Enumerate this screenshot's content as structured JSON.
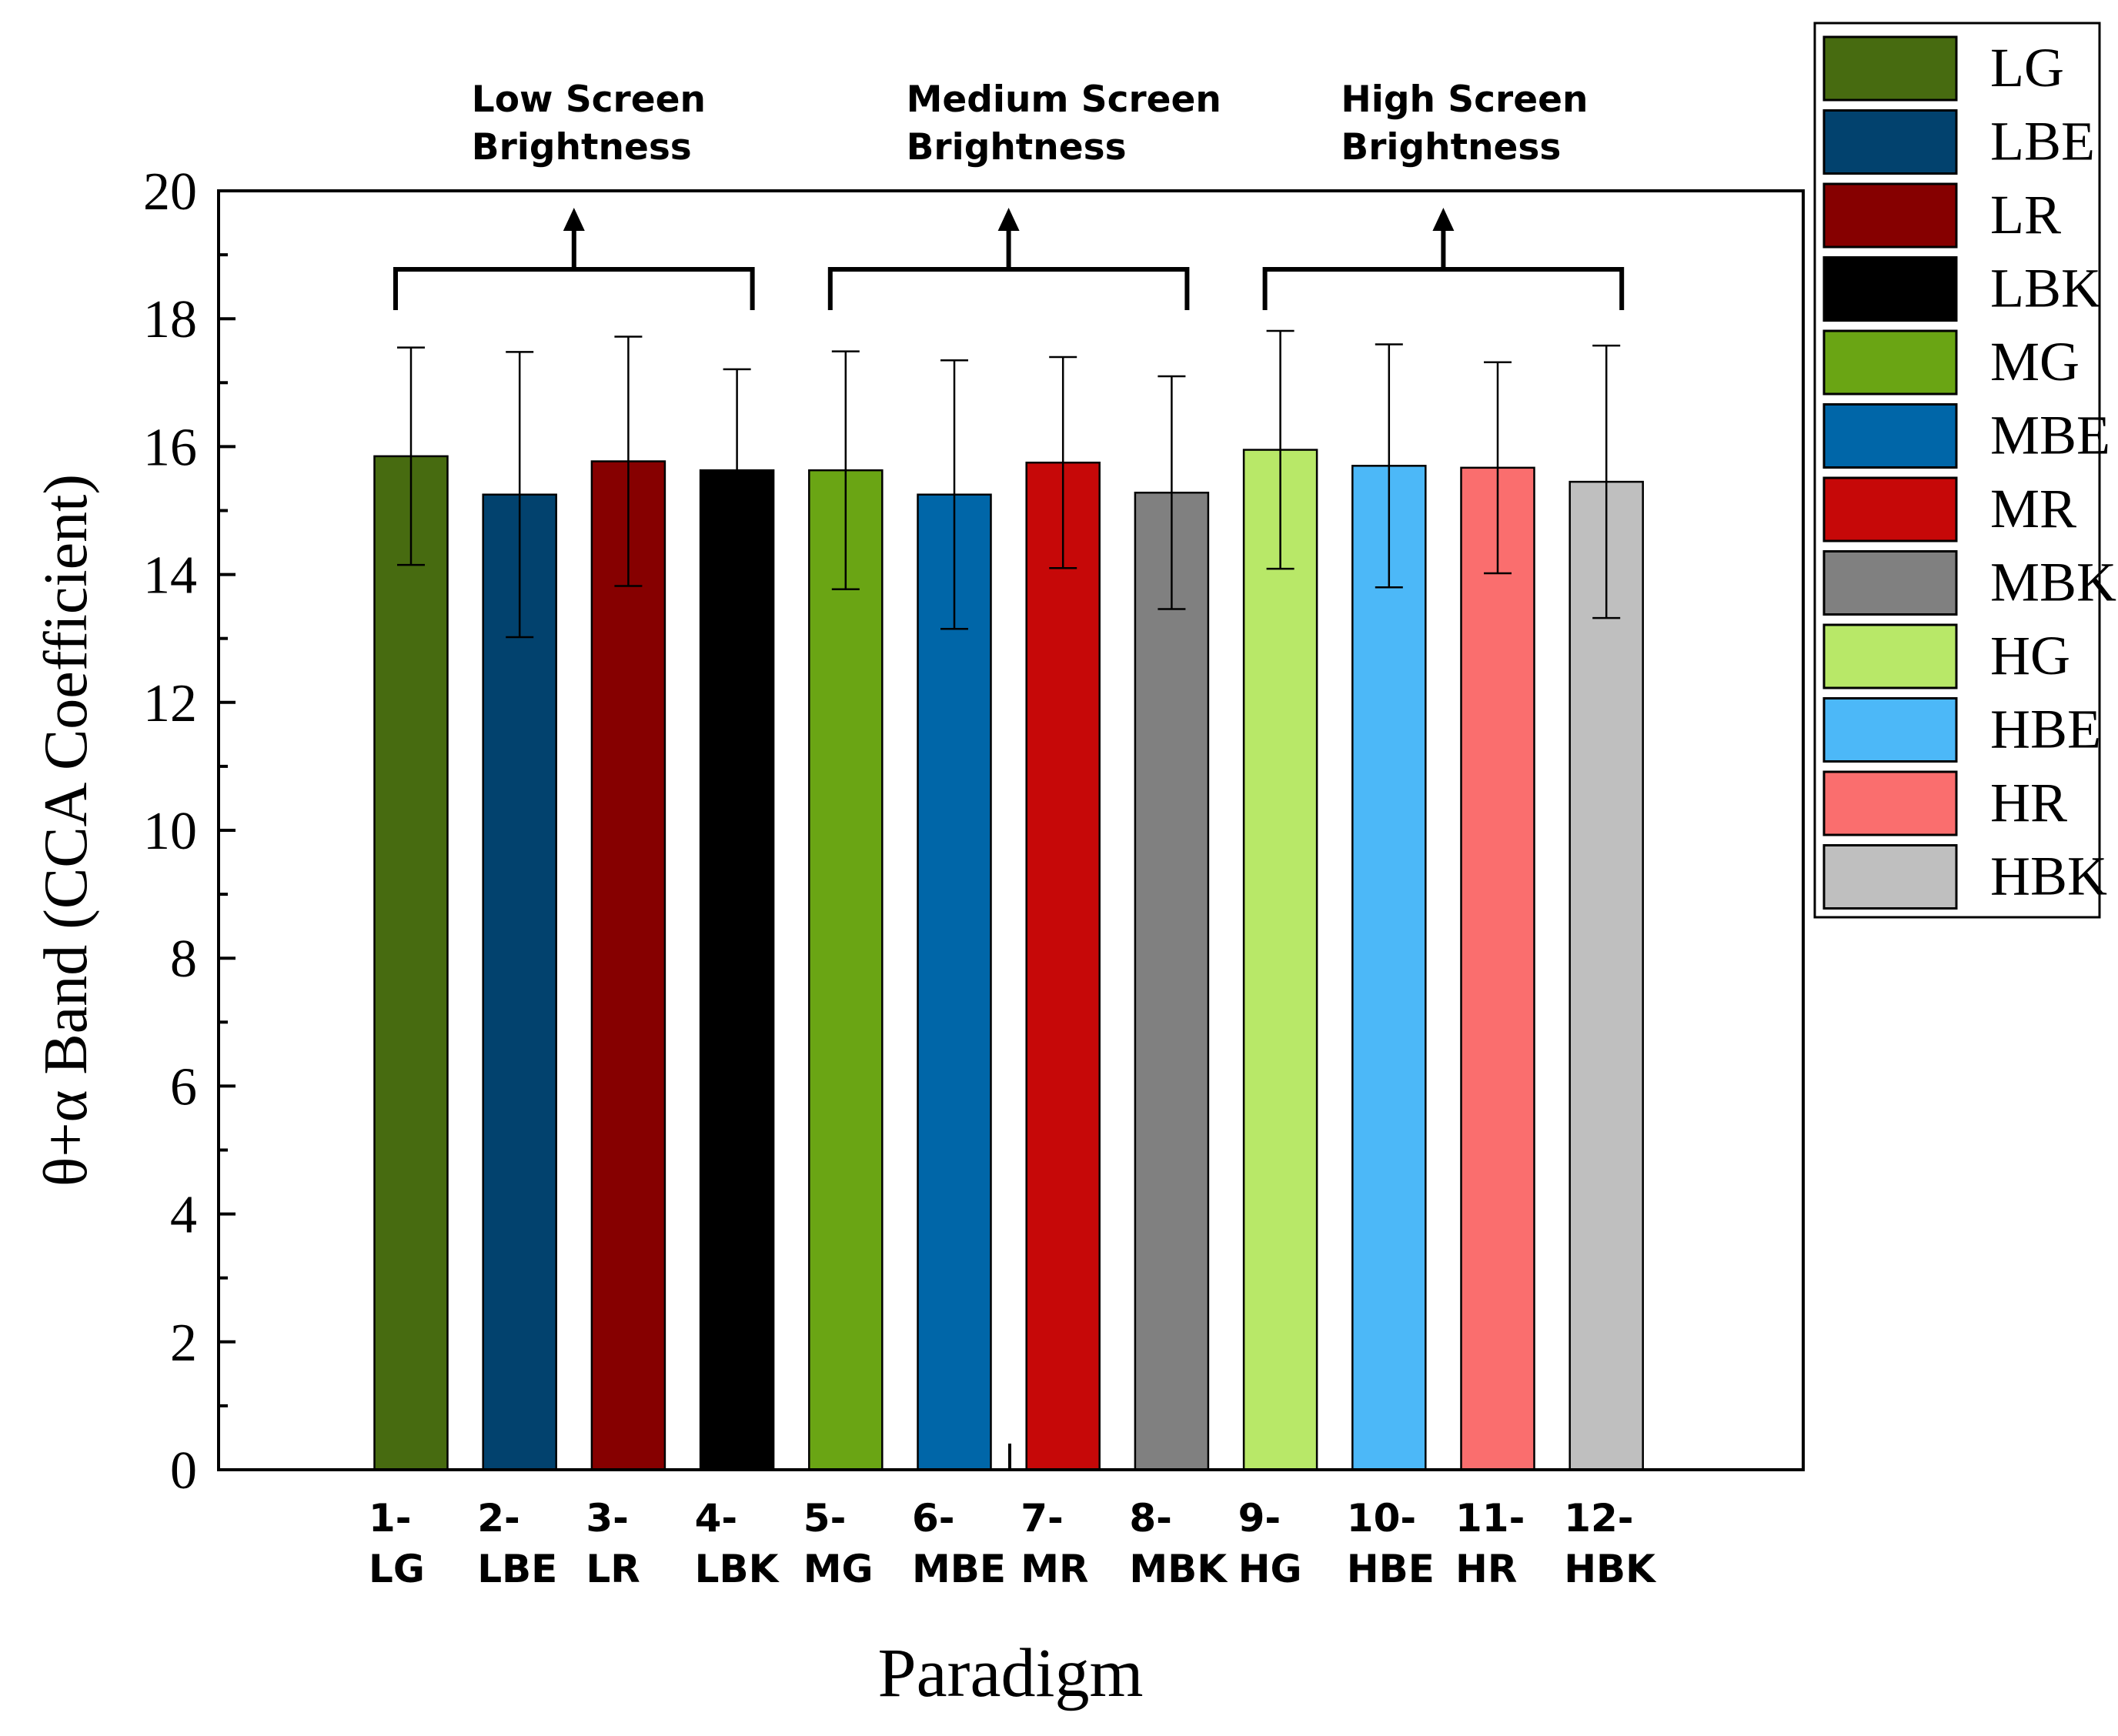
{
  "chart_data": {
    "type": "bar",
    "title": "",
    "xlabel": "Paradigm",
    "ylabel": "θ+α Band (CCA Coefficient)",
    "ylim": [
      0,
      20
    ],
    "yticks": [
      0,
      2,
      4,
      6,
      8,
      10,
      12,
      14,
      16,
      18,
      20
    ],
    "grid": false,
    "legend_position": "outside-right",
    "categories": [
      {
        "num": "1-",
        "code": "LG"
      },
      {
        "num": "2-",
        "code": "LBE"
      },
      {
        "num": "3-",
        "code": "LR"
      },
      {
        "num": "4-",
        "code": "LBK"
      },
      {
        "num": "5-",
        "code": "MG"
      },
      {
        "num": "6-",
        "code": "MBE"
      },
      {
        "num": "7-",
        "code": "MR"
      },
      {
        "num": "8-",
        "code": "MBK"
      },
      {
        "num": "9-",
        "code": "HG"
      },
      {
        "num": "10-",
        "code": "HBE"
      },
      {
        "num": "11-",
        "code": "HR"
      },
      {
        "num": "12-",
        "code": "HBK"
      }
    ],
    "values": [
      15.85,
      15.25,
      15.77,
      15.63,
      15.63,
      15.25,
      15.75,
      15.28,
      15.95,
      15.7,
      15.67,
      15.45
    ],
    "errors": [
      1.7,
      2.23,
      1.95,
      1.58,
      1.86,
      2.1,
      1.65,
      1.82,
      1.86,
      1.9,
      1.65,
      2.13
    ],
    "colors": [
      "#476b10",
      "#02426e",
      "#860000",
      "#000000",
      "#6aa514",
      "#0066a8",
      "#c60808",
      "#808080",
      "#b8e868",
      "#4cb8f8",
      "#fa6e6e",
      "#bfbfbf"
    ],
    "legend": [
      "LG",
      "LBE",
      "LR",
      "LBK",
      "MG",
      "MBE",
      "MR",
      "MBK",
      "HG",
      "HBE",
      "HR",
      "HBK"
    ],
    "groups": [
      {
        "line1": "Low Screen",
        "line2": "Brightness",
        "from": 0,
        "to": 3
      },
      {
        "line1": "Medium Screen",
        "line2": "Brightness",
        "from": 4,
        "to": 7
      },
      {
        "line1": "High Screen",
        "line2": "Brightness",
        "from": 8,
        "to": 11
      }
    ]
  }
}
